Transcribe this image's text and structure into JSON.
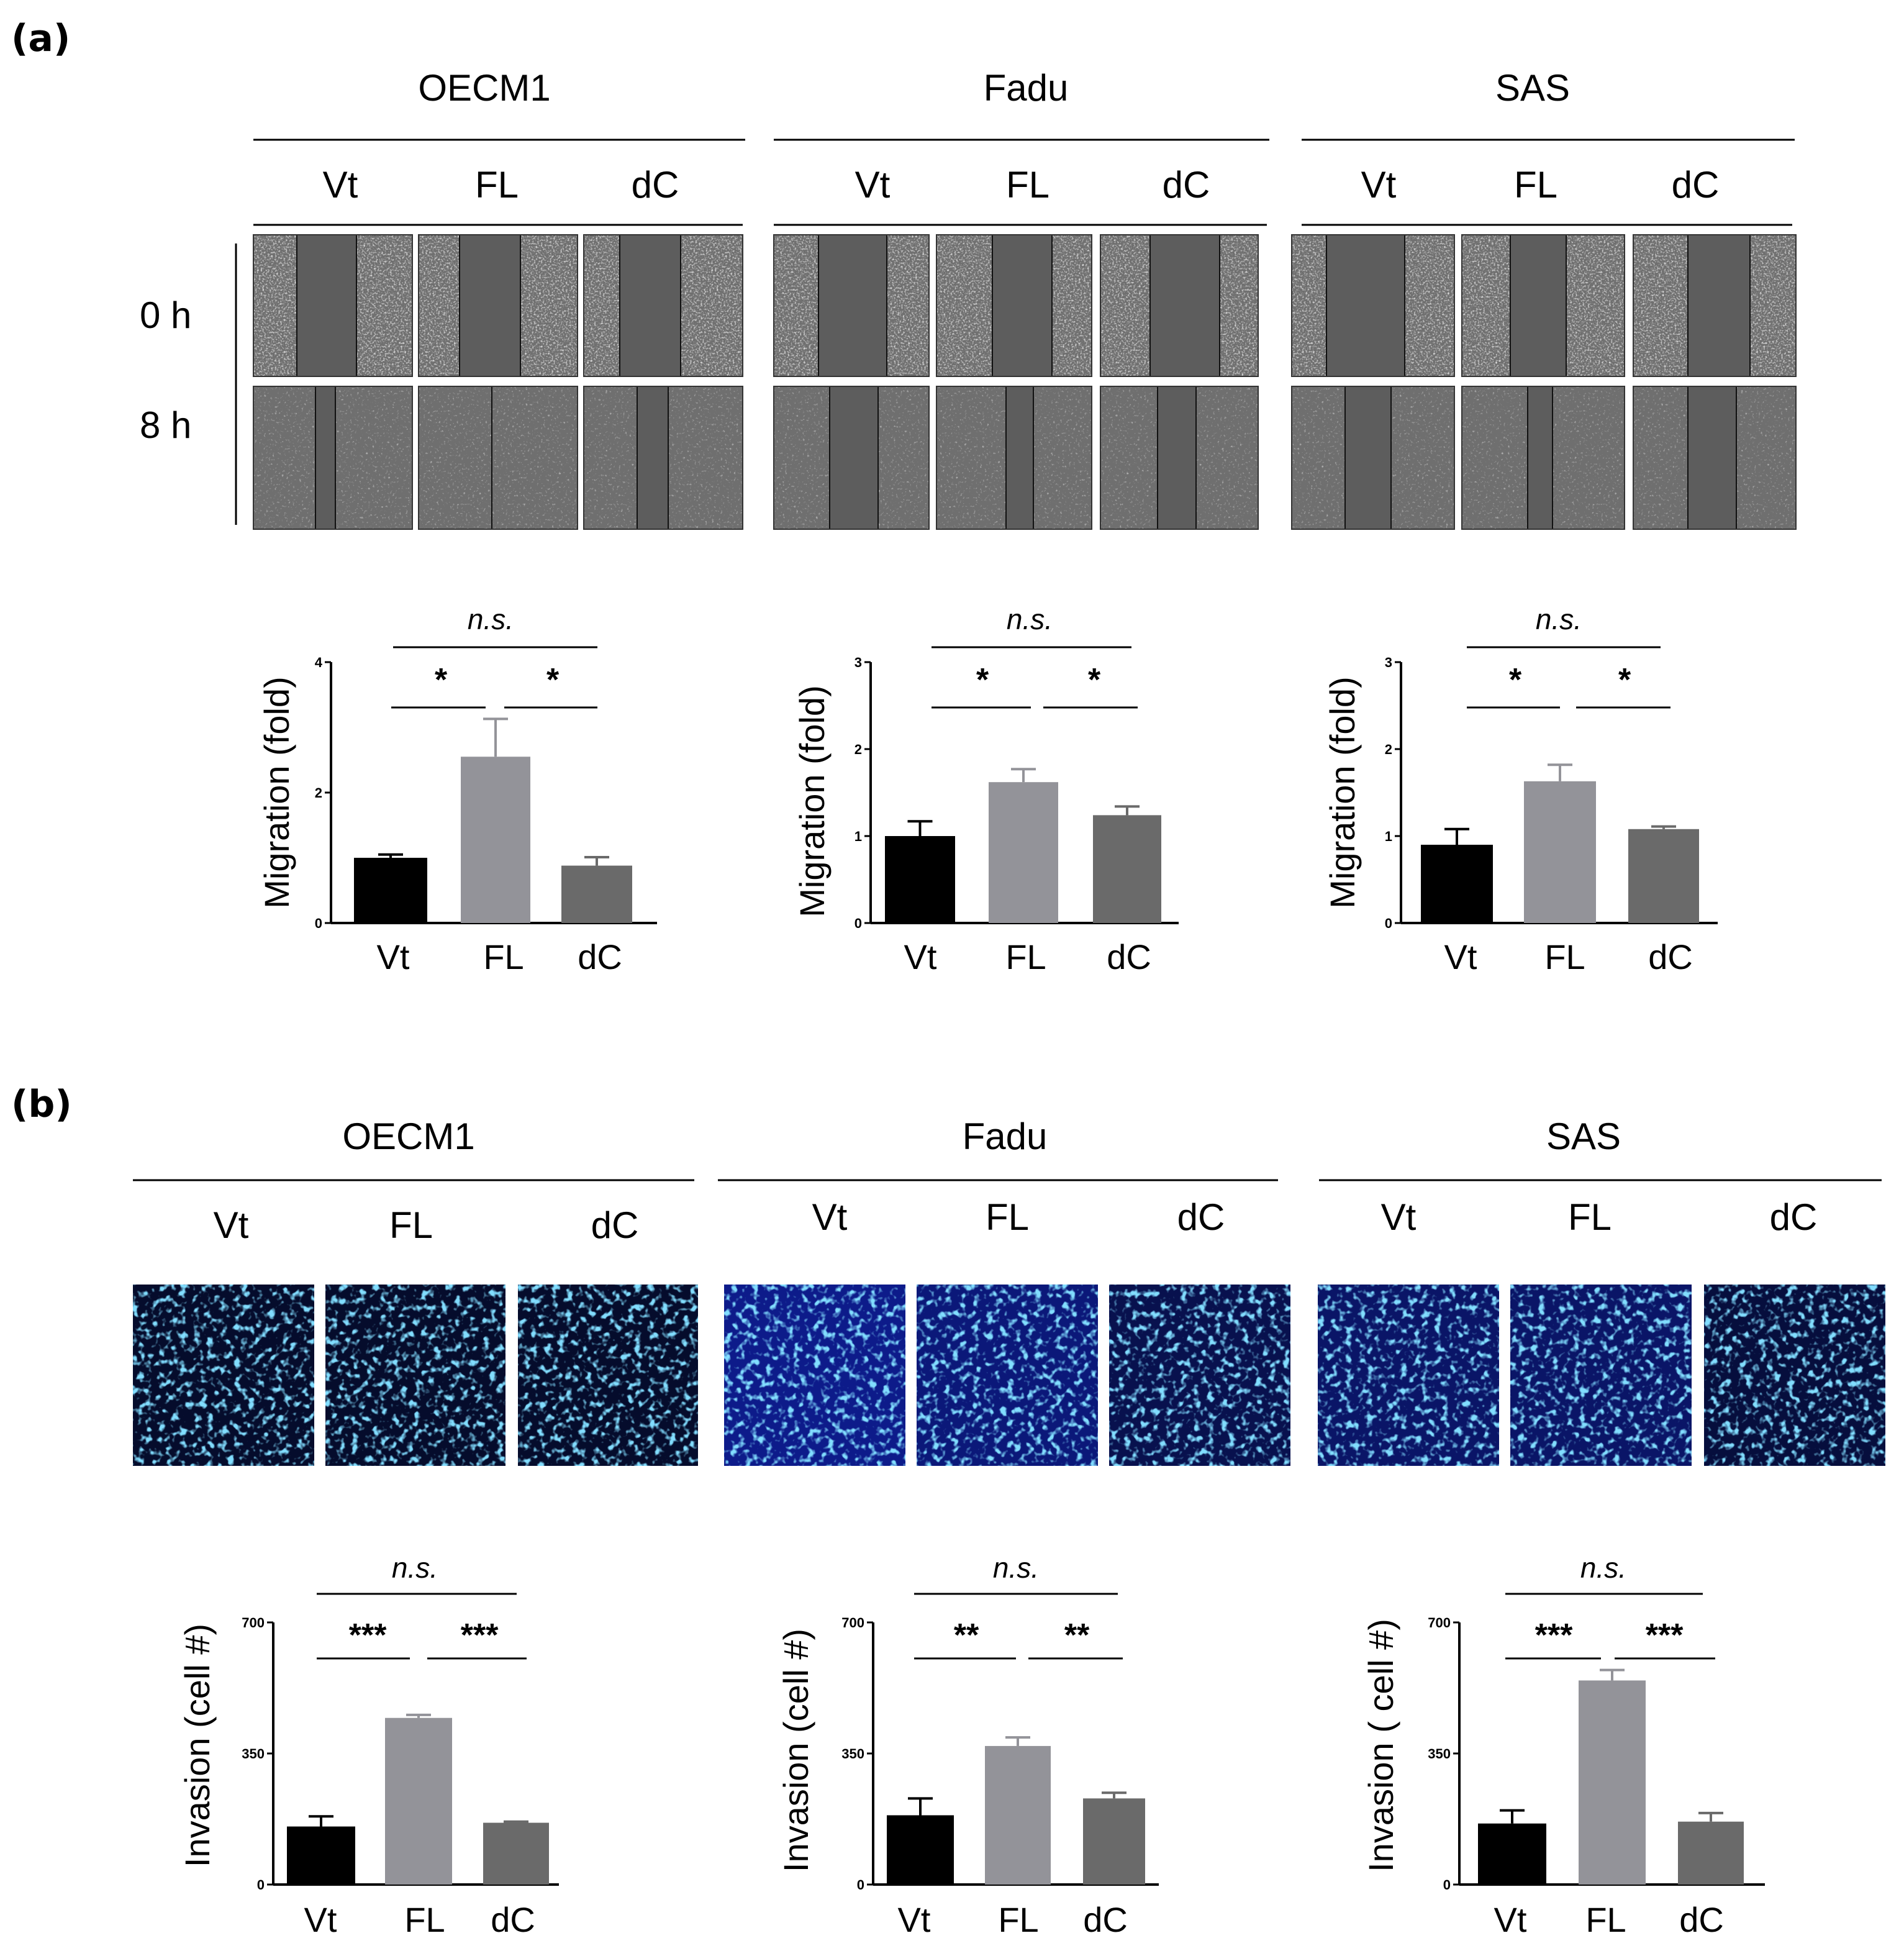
{
  "figure": {
    "panel_a_label": "(a)",
    "panel_b_label": "(b)",
    "cell_lines": [
      "OECM1",
      "Fadu",
      "SAS"
    ],
    "conditions": [
      "Vt",
      "FL",
      "dC"
    ],
    "time_points": [
      "0 h",
      "8 h"
    ],
    "colors": {
      "Vt": "#000000",
      "FL": "#939399",
      "dC": "#6a6a6a",
      "migration_image": "#6f6f6f",
      "invasion_image": "#1428d8",
      "nuclei": "#39b8ff"
    },
    "icons": [
      "wound-healing-micrograph",
      "dapi-stained-nuclei-micrograph"
    ]
  },
  "chart_data": [
    {
      "type": "bar",
      "panel": "a",
      "cell_line": "OECM1",
      "categories": [
        "Vt",
        "FL",
        "dC"
      ],
      "values": [
        1.0,
        2.55,
        0.88
      ],
      "errors": [
        0.05,
        0.58,
        0.13
      ],
      "ylabel": "Migration (fold)",
      "ylim": [
        0,
        4
      ],
      "yticks": [
        "0",
        "2",
        "4"
      ],
      "annotations": [
        "n.s.",
        "*",
        "*"
      ]
    },
    {
      "type": "bar",
      "panel": "a",
      "cell_line": "Fadu",
      "categories": [
        "Vt",
        "FL",
        "dC"
      ],
      "values": [
        1.0,
        1.62,
        1.24
      ],
      "errors": [
        0.17,
        0.15,
        0.1
      ],
      "ylabel": "Migration (fold)",
      "ylim": [
        0,
        3
      ],
      "yticks": [
        "0",
        "1",
        "2",
        "3"
      ],
      "annotations": [
        "n.s.",
        "*",
        "*"
      ]
    },
    {
      "type": "bar",
      "panel": "a",
      "cell_line": "SAS",
      "categories": [
        "Vt",
        "FL",
        "dC"
      ],
      "values": [
        0.9,
        1.63,
        1.08
      ],
      "errors": [
        0.18,
        0.19,
        0.03
      ],
      "ylabel": "Migration (fold)",
      "ylim": [
        0,
        3
      ],
      "yticks": [
        "0",
        "1",
        "2",
        "3"
      ],
      "annotations": [
        "n.s.",
        "*",
        "*"
      ]
    },
    {
      "type": "bar",
      "panel": "b",
      "cell_line": "OECM1",
      "categories": [
        "Vt",
        "FL",
        "dC"
      ],
      "values": [
        155,
        445,
        165
      ],
      "errors": [
        27,
        8,
        3
      ],
      "ylabel": "Invasion (cell #)",
      "ylim": [
        0,
        700
      ],
      "yticks": [
        "0",
        "350",
        "700"
      ],
      "annotations": [
        "n.s.",
        "***",
        "***"
      ]
    },
    {
      "type": "bar",
      "panel": "b",
      "cell_line": "Fadu",
      "categories": [
        "Vt",
        "FL",
        "dC"
      ],
      "values": [
        185,
        370,
        230
      ],
      "errors": [
        45,
        23,
        15
      ],
      "ylabel": "Invasion (cell #)",
      "ylim": [
        0,
        700
      ],
      "yticks": [
        "0",
        "350",
        "700"
      ],
      "annotations": [
        "n.s.",
        "**",
        "**"
      ]
    },
    {
      "type": "bar",
      "panel": "b",
      "cell_line": "SAS",
      "categories": [
        "Vt",
        "FL",
        "dC"
      ],
      "values": [
        163,
        545,
        168
      ],
      "errors": [
        35,
        28,
        23
      ],
      "ylabel": "Invasion ( cell #)",
      "ylim": [
        0,
        700
      ],
      "yticks": [
        "0",
        "350",
        "700"
      ],
      "annotations": [
        "n.s.",
        "***",
        "***"
      ]
    }
  ]
}
